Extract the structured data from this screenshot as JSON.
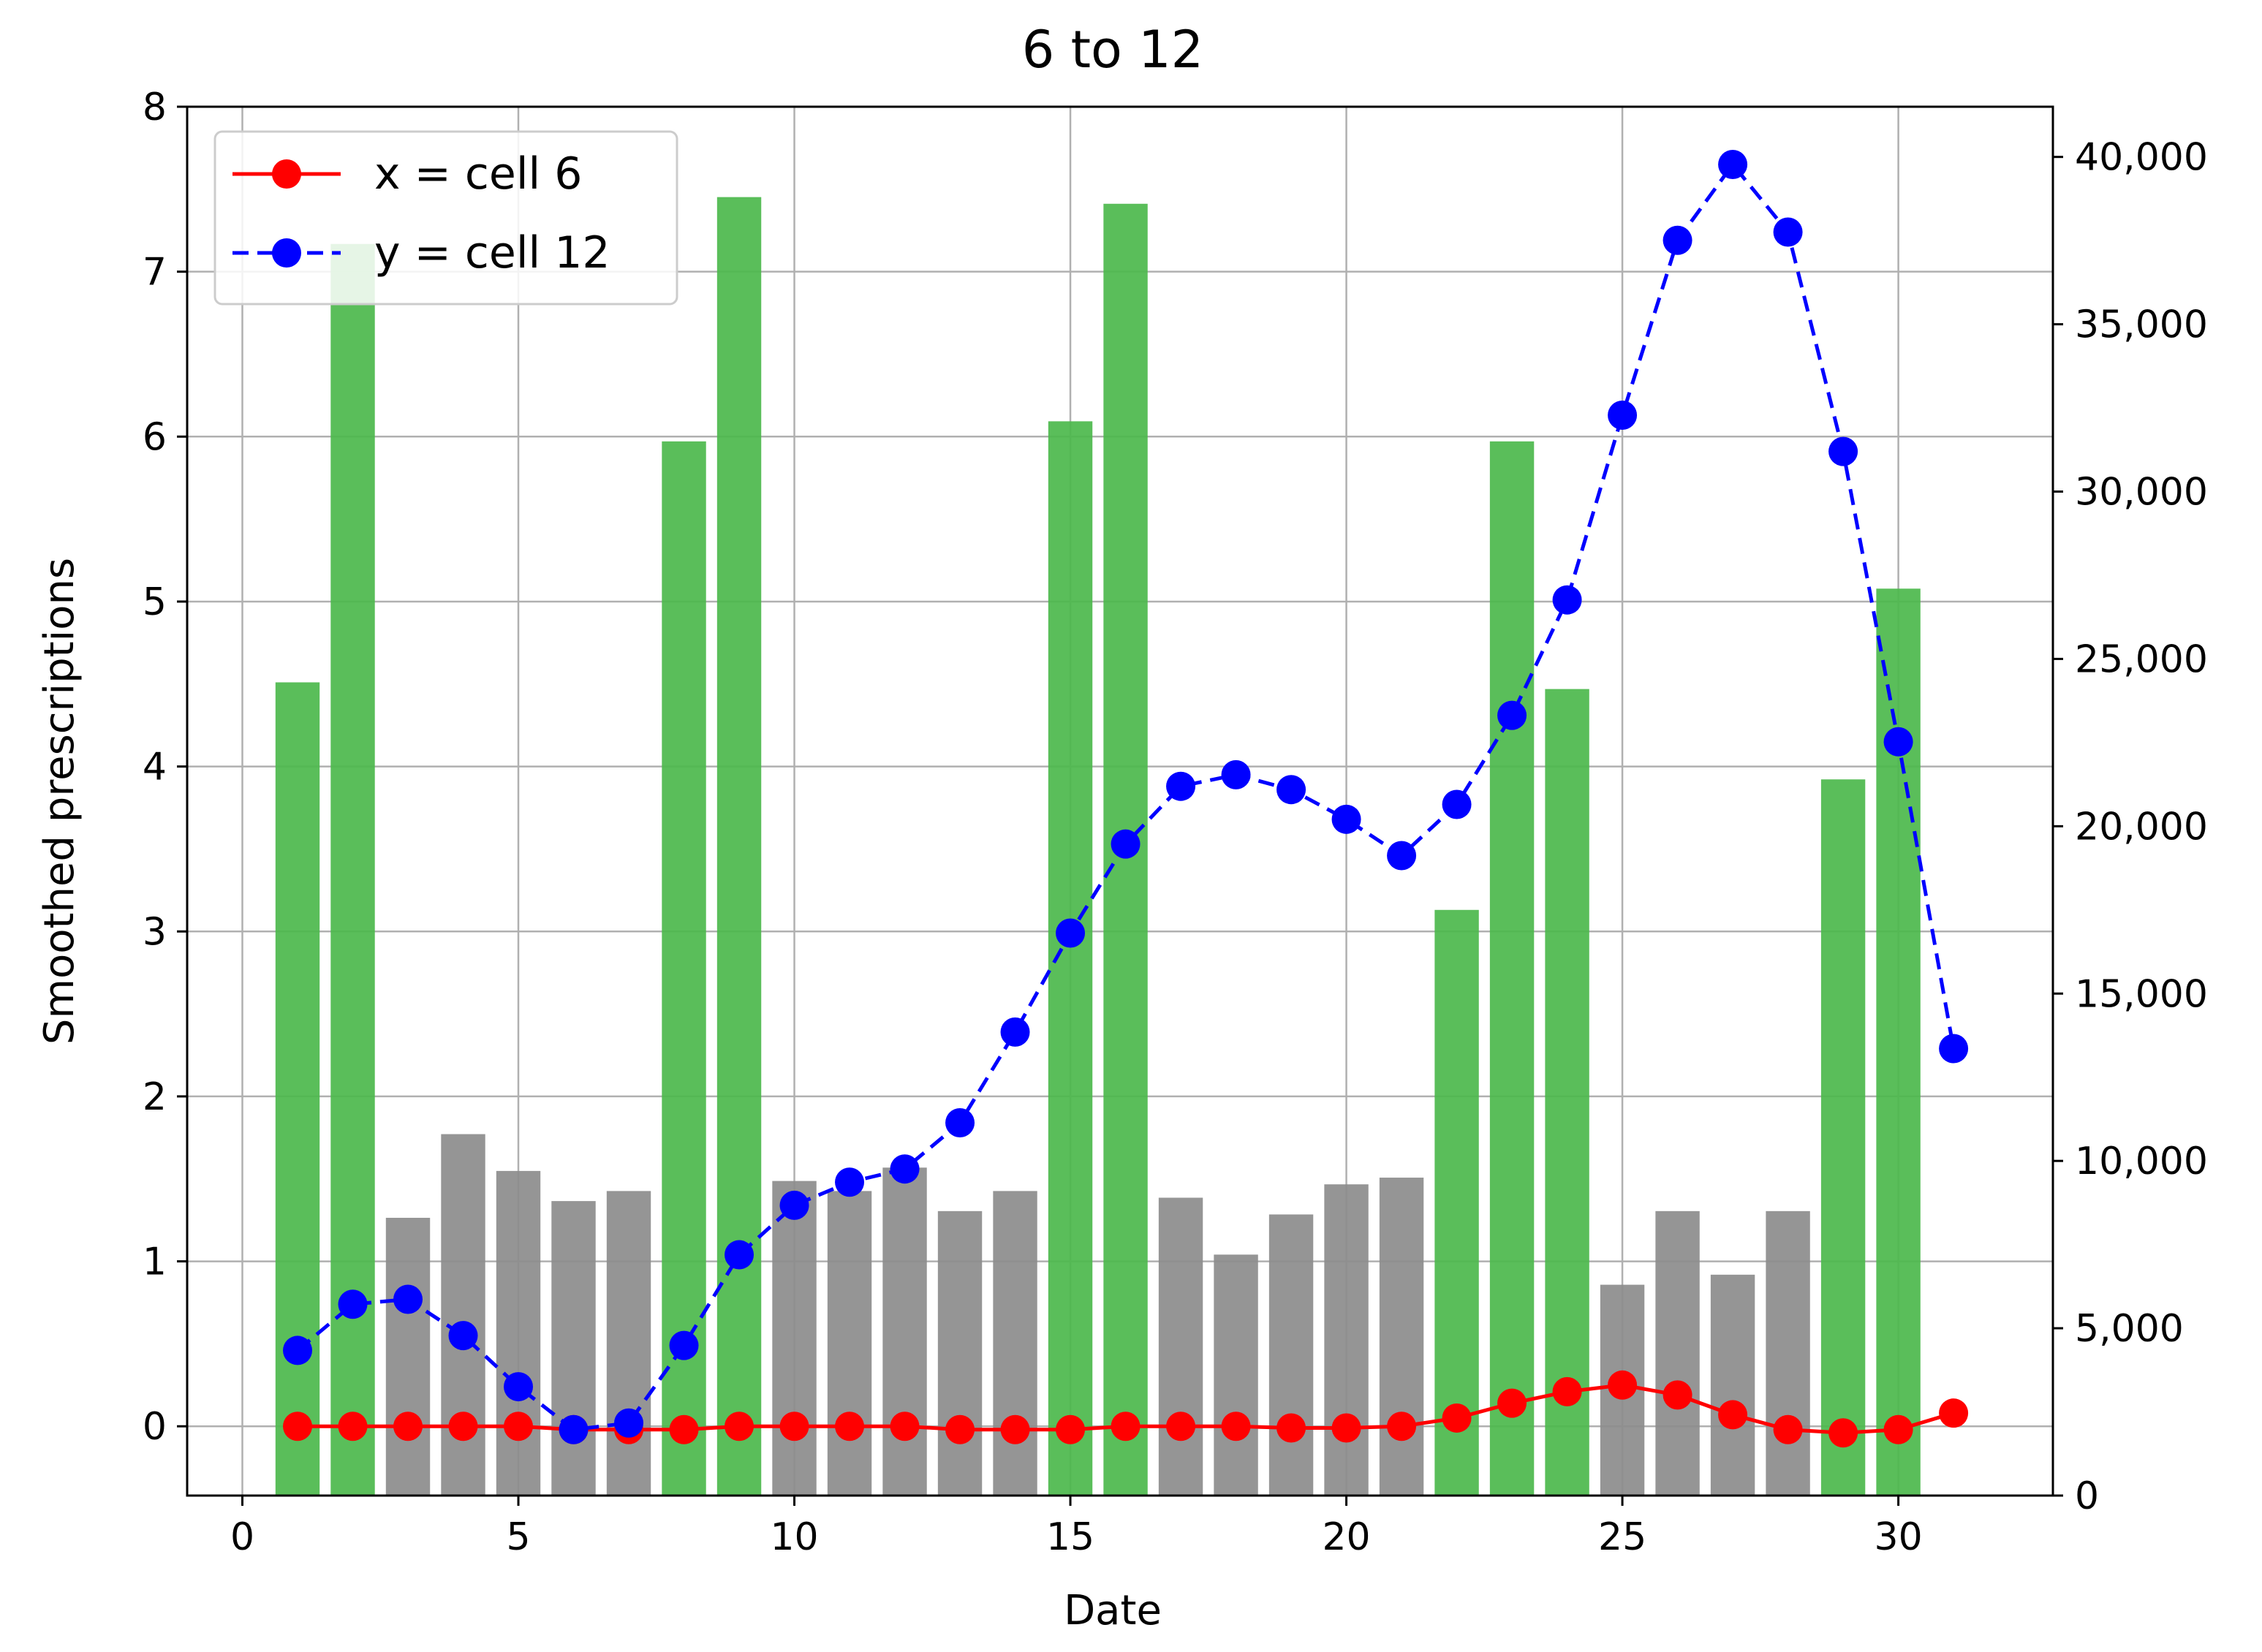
{
  "chart_data": {
    "type": "bar+line",
    "title": "6 to 12",
    "xlabel": "Date",
    "ylabel": "Smoothed prescriptions",
    "y2label": "",
    "xlim": [
      -1,
      32.8
    ],
    "ylim": [
      -0.42,
      8.0
    ],
    "y2lim": [
      0,
      41500
    ],
    "xticks": [
      0,
      5,
      10,
      15,
      20,
      25,
      30
    ],
    "yticks": [
      0,
      1,
      2,
      3,
      4,
      5,
      6,
      7,
      8
    ],
    "y2ticks": [
      0,
      5000,
      10000,
      15000,
      20000,
      25000,
      30000,
      35000,
      40000
    ],
    "y2tick_labels": [
      "0",
      "5,000",
      "10,000",
      "15,000",
      "20,000",
      "25,000",
      "30,000",
      "35,000",
      "40,000"
    ],
    "grid": true,
    "legend_position": "top-left",
    "bars": {
      "axis": "right",
      "x": [
        1,
        2,
        3,
        4,
        5,
        6,
        7,
        8,
        9,
        10,
        11,
        12,
        13,
        14,
        15,
        16,
        17,
        18,
        19,
        20,
        21,
        22,
        23,
        24,
        25,
        26,
        27,
        28,
        29,
        30
      ],
      "values": [
        24300,
        37400,
        8300,
        10800,
        9700,
        8800,
        9100,
        31500,
        38800,
        9400,
        9100,
        9800,
        8500,
        9100,
        32100,
        38600,
        8900,
        7200,
        8400,
        9300,
        9500,
        17500,
        31500,
        24100,
        6300,
        8500,
        6600,
        8500,
        21400,
        27100
      ],
      "colors": [
        "#4cb84c",
        "#4cb84c",
        "#8c8c8c",
        "#8c8c8c",
        "#8c8c8c",
        "#8c8c8c",
        "#8c8c8c",
        "#4cb84c",
        "#4cb84c",
        "#8c8c8c",
        "#8c8c8c",
        "#8c8c8c",
        "#8c8c8c",
        "#8c8c8c",
        "#4cb84c",
        "#4cb84c",
        "#8c8c8c",
        "#8c8c8c",
        "#8c8c8c",
        "#8c8c8c",
        "#8c8c8c",
        "#4cb84c",
        "#4cb84c",
        "#4cb84c",
        "#8c8c8c",
        "#8c8c8c",
        "#8c8c8c",
        "#8c8c8c",
        "#4cb84c",
        "#4cb84c"
      ]
    },
    "series": [
      {
        "name": "x = cell 6",
        "axis": "left",
        "color": "#ff0000",
        "linestyle": "solid",
        "marker": "circle",
        "x": [
          1,
          2,
          3,
          4,
          5,
          6,
          7,
          8,
          9,
          10,
          11,
          12,
          13,
          14,
          15,
          16,
          17,
          18,
          19,
          20,
          21,
          22,
          23,
          24,
          25,
          26,
          27,
          28,
          29,
          30,
          31
        ],
        "values": [
          0.0,
          0.0,
          0.0,
          0.0,
          0.0,
          -0.02,
          -0.02,
          -0.02,
          0.0,
          0.0,
          0.0,
          0.0,
          -0.02,
          -0.02,
          -0.02,
          0.0,
          0.0,
          0.0,
          -0.01,
          -0.01,
          0.0,
          0.05,
          0.14,
          0.21,
          0.25,
          0.19,
          0.07,
          -0.02,
          -0.04,
          -0.02,
          0.08
        ]
      },
      {
        "name": "y = cell 12",
        "axis": "left",
        "color": "#0000ff",
        "linestyle": "dashed",
        "marker": "circle",
        "x": [
          1,
          2,
          3,
          4,
          5,
          6,
          7,
          8,
          9,
          10,
          11,
          12,
          13,
          14,
          15,
          16,
          17,
          18,
          19,
          20,
          21,
          22,
          23,
          24,
          25,
          26,
          27,
          28,
          29,
          30,
          31
        ],
        "values": [
          0.46,
          0.74,
          0.77,
          0.55,
          0.24,
          -0.02,
          0.02,
          0.49,
          1.04,
          1.34,
          1.48,
          1.56,
          1.84,
          2.39,
          2.99,
          3.53,
          3.88,
          3.95,
          3.86,
          3.68,
          3.46,
          3.77,
          4.31,
          5.01,
          6.13,
          7.19,
          7.65,
          7.24,
          5.91,
          4.15,
          2.29
        ]
      }
    ]
  }
}
